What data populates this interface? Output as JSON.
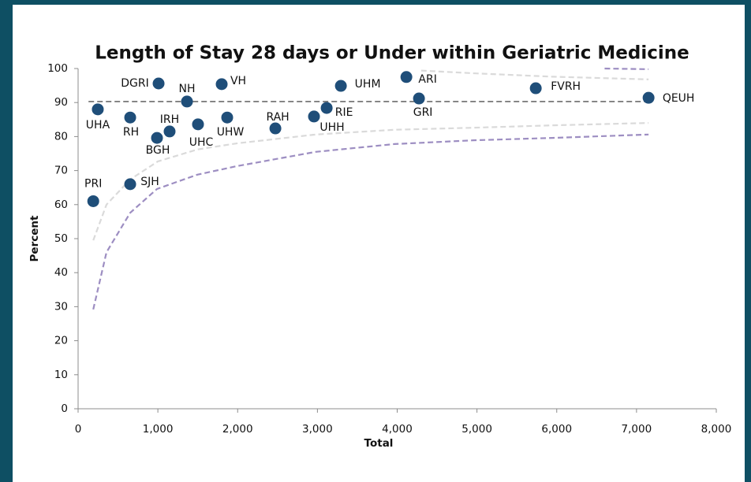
{
  "chart_data": {
    "type": "scatter",
    "title": "Length of Stay 28 days or Under within Geriatric Medicine",
    "xlabel": "Total",
    "ylabel": "Percent",
    "xlim": [
      0,
      8000
    ],
    "ylim": [
      0,
      100
    ],
    "xticks": [
      0,
      {
        "value": 1000,
        "label": "1,000"
      },
      {
        "value": 2000,
        "label": "2,000"
      },
      {
        "value": 3000,
        "label": "3,000"
      },
      {
        "value": 4000,
        "label": "4,000"
      },
      {
        "value": 5000,
        "label": "5,000"
      },
      {
        "value": 6000,
        "label": "6,000"
      },
      {
        "value": 7000,
        "label": "7,000"
      },
      {
        "value": 8000,
        "label": "8,000"
      }
    ],
    "yticks": [
      0,
      10,
      20,
      30,
      40,
      50,
      60,
      70,
      80,
      90,
      100
    ],
    "color": "#1f4e79",
    "point_labels": [
      "PRI",
      "SJH",
      "UHA",
      "RH",
      "BGH",
      "IRH",
      "DGRI",
      "NH",
      "UHC",
      "VH",
      "UHW",
      "RAH",
      "UHH",
      "RIE",
      "UHM",
      "ARI",
      "GRI",
      "FVRH",
      "QEUH"
    ],
    "x": [
      190,
      653,
      247,
      653,
      989,
      1147,
      1009,
      1365,
      1503,
      1800,
      1869,
      2473,
      2957,
      3116,
      3294,
      4115,
      4273,
      5737,
      7151
    ],
    "values": [
      61,
      66,
      88,
      85.6,
      79.6,
      81.5,
      95.6,
      90.3,
      83.6,
      95.4,
      85.6,
      82.4,
      85.9,
      88.4,
      94.9,
      97.5,
      91.2,
      94.2,
      91.4
    ],
    "reference_lines": [
      {
        "value": 90.3,
        "color": "#6b6b6b"
      }
    ],
    "curves": [
      {
        "color": "#9d8ec2",
        "x": [
          190,
          356,
          653,
          989,
          1494,
          1988,
          2977,
          3966,
          4955,
          5944,
          7151
        ],
        "values": [
          29.2,
          46,
          57.6,
          64.6,
          68.8,
          71.3,
          75.5,
          77.8,
          78.9,
          79.6,
          80.6
        ]
      },
      {
        "color": "#dadada",
        "x": [
          190,
          356,
          653,
          1000,
          1494,
          1988,
          2977,
          3966,
          4955,
          5944,
          7151
        ],
        "values": [
          49.5,
          60,
          67.4,
          72.7,
          76.2,
          78,
          80.6,
          82,
          82.6,
          83.3,
          84
        ]
      },
      {
        "color": "#dadada",
        "x": [
          4300,
          4955,
          5944,
          7151
        ],
        "values": [
          99.4,
          98.6,
          97.6,
          96.8
        ]
      },
      {
        "color": "#9d8ec2",
        "x": [
          6600,
          7151
        ],
        "values": [
          100,
          99.8
        ]
      }
    ]
  }
}
